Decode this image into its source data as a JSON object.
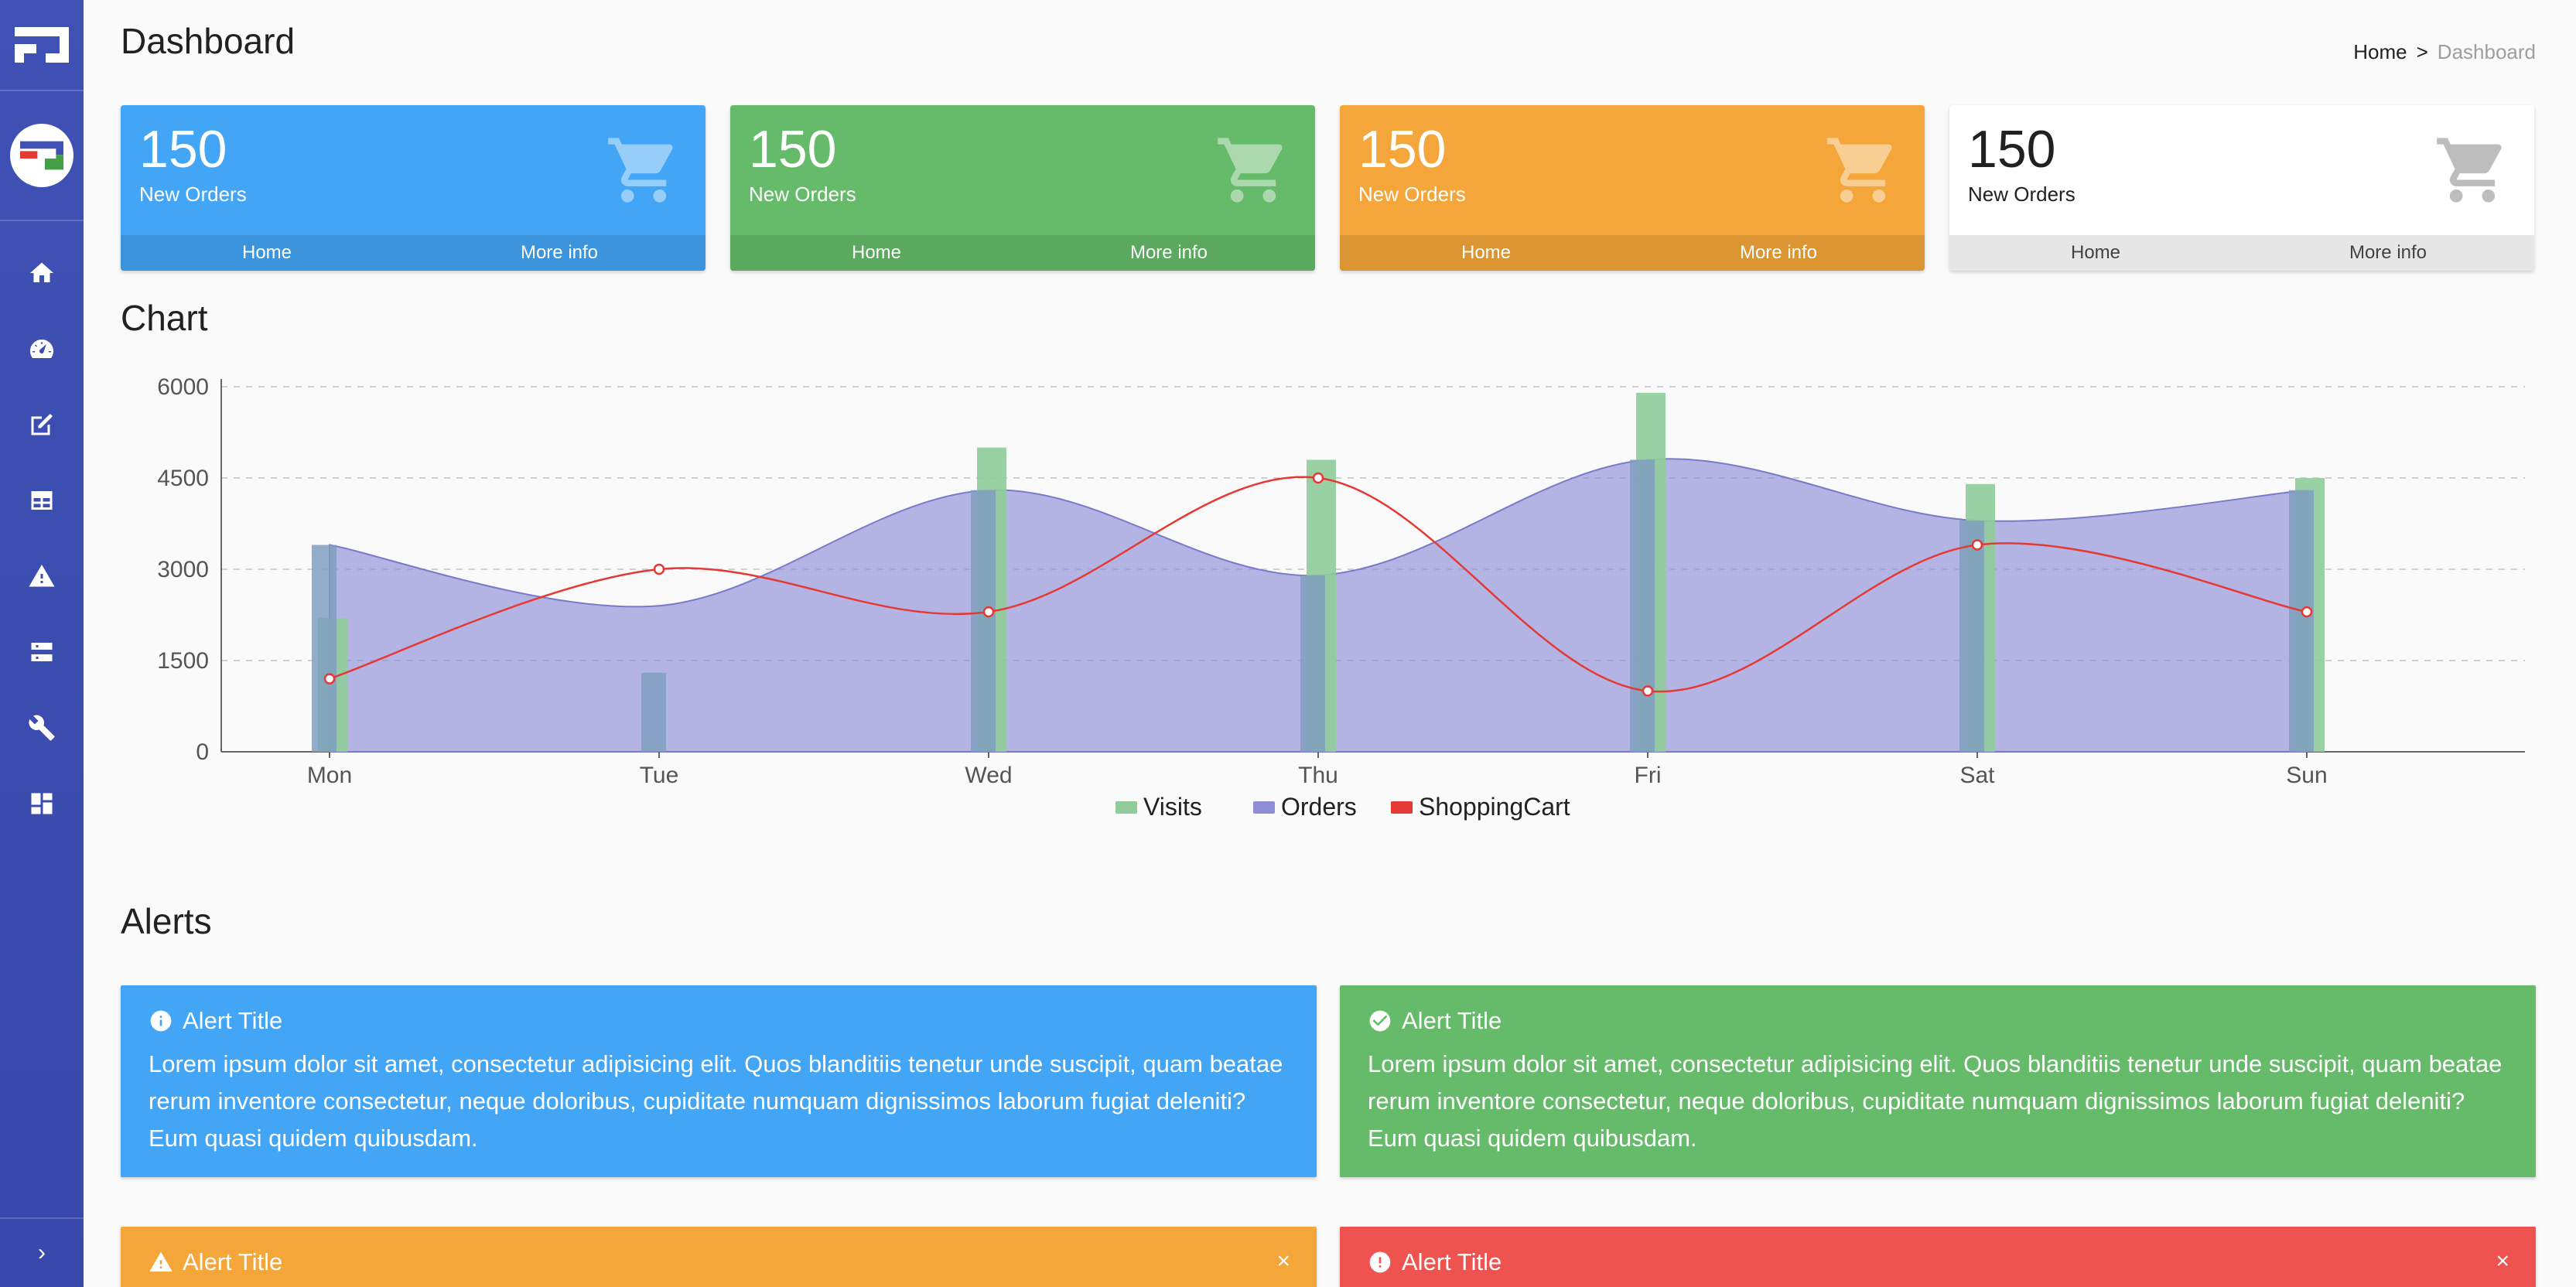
{
  "page": {
    "title": "Dashboard"
  },
  "breadcrumb": {
    "home": "Home",
    "separator": ">",
    "current": "Dashboard"
  },
  "cards": [
    {
      "value": "150",
      "label": "New Orders",
      "link_home": "Home",
      "link_more": "More info",
      "color": "#42a5f5"
    },
    {
      "value": "150",
      "label": "New Orders",
      "link_home": "Home",
      "link_more": "More info",
      "color": "#66bb6a"
    },
    {
      "value": "150",
      "label": "New Orders",
      "link_home": "Home",
      "link_more": "More info",
      "color": "#f4a63a"
    },
    {
      "value": "150",
      "label": "New Orders",
      "link_home": "Home",
      "link_more": "More info",
      "color": "#ffffff"
    }
  ],
  "sections": {
    "chart": "Chart",
    "alerts": "Alerts"
  },
  "sidebar": {
    "items": [
      {
        "icon": "home-icon"
      },
      {
        "icon": "dashboard-gauge-icon"
      },
      {
        "icon": "edit-icon"
      },
      {
        "icon": "table-icon"
      },
      {
        "icon": "warning-icon"
      },
      {
        "icon": "server-icon"
      },
      {
        "icon": "wrench-icon"
      },
      {
        "icon": "widgets-icon"
      }
    ],
    "collapse": "›"
  },
  "chart_data": {
    "type": "bar",
    "categories": [
      "Mon",
      "Tue",
      "Wed",
      "Thu",
      "Fri",
      "Sat",
      "Sun"
    ],
    "ylim": [
      0,
      6000
    ],
    "yticks": [
      0,
      1500,
      3000,
      4500,
      6000
    ],
    "grid": true,
    "legend_position": "bottom",
    "series": [
      {
        "name": "Visits",
        "type": "bar",
        "color": "#8fcc9a",
        "values": [
          2200,
          0,
          5000,
          4800,
          5900,
          4400,
          4500
        ]
      },
      {
        "name": "Orders",
        "type": "area",
        "color": "#8f8fd8",
        "values": [
          3400,
          2400,
          4300,
          2900,
          4800,
          3800,
          4300
        ]
      },
      {
        "name": "ShoppingCart",
        "type": "line",
        "color": "#e53935",
        "values": [
          1200,
          3000,
          2300,
          4500,
          1000,
          3400,
          2300
        ]
      }
    ]
  },
  "alerts": [
    {
      "title": "Alert Title",
      "body": "Lorem ipsum dolor sit amet, consectetur adipisicing elit. Quos blanditiis tenetur unde suscipit, quam beatae rerum inventore consectetur, neque doloribus, cupiditate numquam dignissimos laborum fugiat deleniti? Eum quasi quidem quibusdam."
    },
    {
      "title": "Alert Title",
      "body": "Lorem ipsum dolor sit amet, consectetur adipisicing elit. Quos blanditiis tenetur unde suscipit, quam beatae rerum inventore consectetur, neque doloribus, cupiditate numquam dignissimos laborum fugiat deleniti? Eum quasi quidem quibusdam."
    },
    {
      "title": "Alert Title",
      "close": "×"
    },
    {
      "title": "Alert Title",
      "close": "×"
    }
  ]
}
